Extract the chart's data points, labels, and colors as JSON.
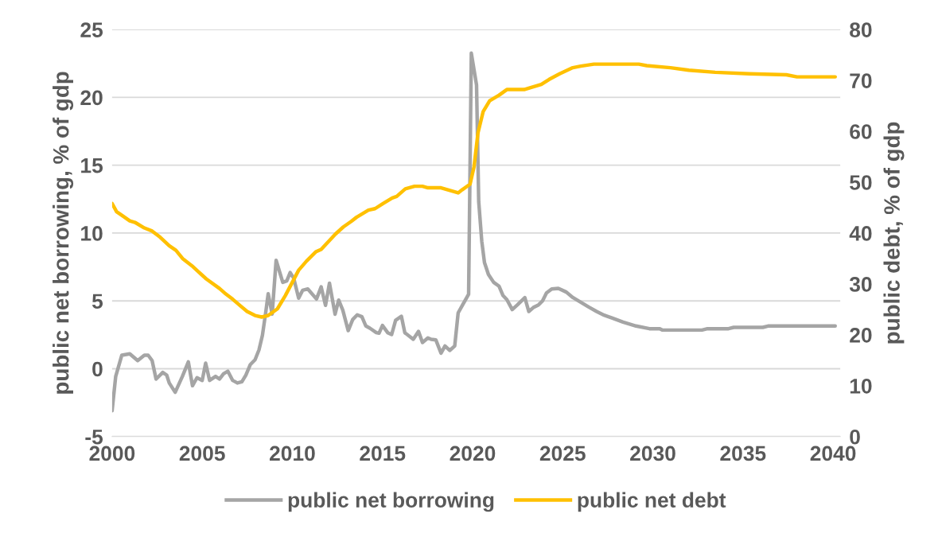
{
  "chart_data": {
    "type": "line",
    "ylabel": "public net borrowing, % of gdp",
    "y2label": "public debt, % of gdp",
    "xlim": [
      2000,
      2040.4
    ],
    "xticks": [
      2000,
      2005,
      2010,
      2015,
      2020,
      2025,
      2030,
      2035,
      2040
    ],
    "ylim": [
      -5,
      25
    ],
    "yticks": [
      -5,
      0,
      5,
      10,
      15,
      20,
      25
    ],
    "y2lim": [
      0,
      80
    ],
    "y2ticks": [
      0,
      10,
      20,
      30,
      40,
      50,
      60,
      70,
      80
    ],
    "grid": "y",
    "legend": "bottom",
    "marker": "none",
    "line_style": "solid",
    "series": [
      {
        "name": "public net borrowing",
        "color": "#a5a5a5",
        "x": [
          2000.0,
          2000.2,
          2000.54,
          2000.98,
          2001.42,
          2001.79,
          2002.0,
          2002.22,
          2002.44,
          2002.81,
          2003.03,
          2003.17,
          2003.5,
          2003.9,
          2004.23,
          2004.46,
          2004.71,
          2005.0,
          2005.19,
          2005.41,
          2005.74,
          2005.96,
          2006.18,
          2006.42,
          2006.69,
          2006.95,
          2007.2,
          2007.42,
          2007.67,
          2007.93,
          2008.15,
          2008.34,
          2008.52,
          2008.66,
          2008.88,
          2009.1,
          2009.47,
          2009.69,
          2009.88,
          2010.08,
          2010.35,
          2010.57,
          2010.86,
          2011.34,
          2011.6,
          2011.84,
          2012.06,
          2012.37,
          2012.57,
          2012.8,
          2013.1,
          2013.35,
          2013.6,
          2013.86,
          2014.08,
          2014.3,
          2014.66,
          2014.81,
          2015.0,
          2015.29,
          2015.51,
          2015.73,
          2016.05,
          2016.24,
          2016.71,
          2017.0,
          2017.22,
          2017.52,
          2017.7,
          2017.96,
          2018.25,
          2018.47,
          2018.73,
          2019.01,
          2019.2,
          2019.45,
          2019.78,
          2019.93,
          2020.22,
          2020.34,
          2020.51,
          2020.66,
          2020.88,
          2021.17,
          2021.47,
          2021.69,
          2021.9,
          2022.2,
          2022.49,
          2022.9,
          2023.12,
          2023.37,
          2023.66,
          2023.88,
          2024.1,
          2024.39,
          2024.76,
          2025.2,
          2025.56,
          2026.0,
          2026.44,
          2026.88,
          2027.3,
          2027.76,
          2028.35,
          2029.07,
          2029.81,
          2030.39,
          2030.54,
          2032.73,
          2033.03,
          2034.2,
          2034.49,
          2036.1,
          2036.39,
          2040.12
        ],
        "values": [
          -3.1,
          -0.56,
          1.0,
          1.1,
          0.6,
          1.0,
          1.0,
          0.6,
          -0.76,
          -0.27,
          -0.47,
          -1.05,
          -1.74,
          -0.56,
          0.51,
          -1.25,
          -0.66,
          -0.86,
          0.41,
          -0.86,
          -0.56,
          -0.76,
          -0.37,
          -0.18,
          -0.86,
          -1.05,
          -0.96,
          -0.47,
          0.31,
          0.66,
          1.39,
          2.46,
          4.12,
          5.53,
          4.02,
          7.99,
          6.37,
          6.47,
          7.09,
          6.66,
          5.2,
          5.78,
          5.88,
          5.14,
          6.03,
          4.67,
          6.31,
          4.02,
          5.06,
          4.32,
          2.81,
          3.63,
          3.97,
          3.83,
          3.15,
          2.99,
          2.66,
          2.62,
          3.19,
          2.66,
          2.52,
          3.57,
          3.87,
          2.66,
          2.17,
          2.75,
          1.93,
          2.27,
          2.17,
          2.13,
          1.15,
          1.68,
          1.35,
          1.68,
          4.12,
          4.71,
          5.49,
          23.26,
          20.91,
          12.33,
          9.4,
          7.83,
          6.95,
          6.37,
          6.08,
          5.39,
          5.1,
          4.36,
          4.71,
          5.24,
          4.22,
          4.51,
          4.71,
          5.0,
          5.59,
          5.88,
          5.92,
          5.65,
          5.25,
          4.9,
          4.55,
          4.22,
          3.95,
          3.73,
          3.44,
          3.15,
          2.95,
          2.95,
          2.85,
          2.85,
          2.95,
          2.95,
          3.05,
          3.05,
          3.15,
          3.15
        ]
      },
      {
        "name": "public net debt",
        "color": "#ffc000",
        "axis": "y2",
        "x": [
          2000.0,
          2000.25,
          2000.54,
          2000.98,
          2001.27,
          2001.79,
          2002.22,
          2002.66,
          2003.17,
          2003.54,
          2003.91,
          2004.42,
          2004.79,
          2005.22,
          2005.96,
          2006.25,
          2006.69,
          2007.05,
          2007.49,
          2007.93,
          2008.3,
          2008.66,
          2009.17,
          2009.61,
          2010.35,
          2010.79,
          2011.3,
          2011.6,
          2012.39,
          2012.83,
          2013.27,
          2013.56,
          2014.22,
          2014.59,
          2015.03,
          2015.54,
          2015.79,
          2016.27,
          2016.78,
          2017.22,
          2017.52,
          2018.25,
          2019.2,
          2019.42,
          2019.86,
          2020.08,
          2020.3,
          2020.59,
          2020.95,
          2021.47,
          2021.9,
          2022.86,
          2023.22,
          2023.81,
          2024.25,
          2024.83,
          2025.56,
          2026.0,
          2026.73,
          2027.61,
          2029.22,
          2029.66,
          2030.98,
          2032.0,
          2033.46,
          2035.37,
          2037.41,
          2038.0,
          2040.12
        ],
        "values": [
          45.8,
          44.2,
          43.5,
          42.4,
          42.1,
          41.0,
          40.4,
          39.2,
          37.5,
          36.6,
          35.0,
          33.6,
          32.4,
          31.0,
          29.1,
          28.2,
          27.0,
          25.9,
          24.6,
          23.8,
          23.5,
          23.8,
          25.1,
          27.7,
          32.7,
          34.5,
          36.3,
          36.8,
          39.8,
          41.2,
          42.3,
          43.1,
          44.5,
          44.8,
          45.8,
          46.9,
          47.2,
          48.7,
          49.2,
          49.2,
          48.9,
          48.9,
          47.9,
          48.5,
          49.6,
          53.0,
          59.7,
          63.9,
          66.0,
          67.1,
          68.2,
          68.2,
          68.6,
          69.2,
          70.2,
          71.3,
          72.5,
          72.8,
          73.2,
          73.2,
          73.2,
          72.9,
          72.5,
          72.0,
          71.6,
          71.3,
          71.1,
          70.7,
          70.7
        ]
      }
    ]
  }
}
